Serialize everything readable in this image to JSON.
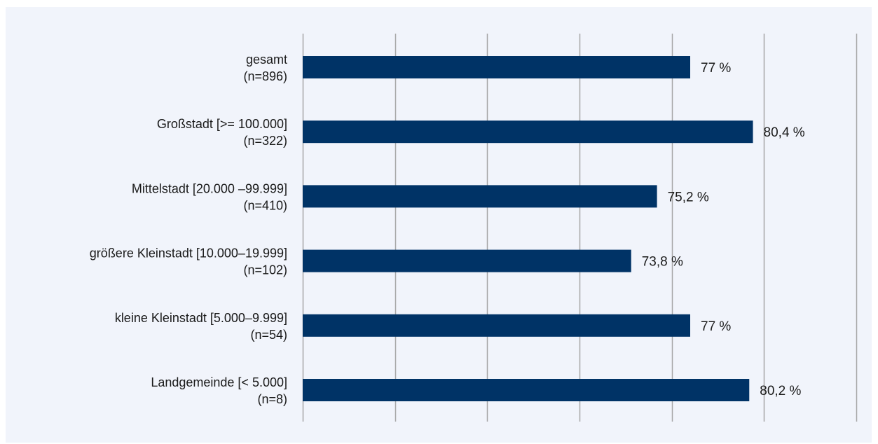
{
  "chart_data": {
    "type": "bar",
    "orientation": "horizontal",
    "title": "",
    "xlabel": "",
    "ylabel": "",
    "grid": true,
    "categories": [
      {
        "name": "gesamt",
        "n": "(n=896)"
      },
      {
        "name": "Großstadt [>= 100.000]",
        "n": "(n=322)"
      },
      {
        "name": "Mittelstadt [20.000 –99.999]",
        "n": "(n=410)"
      },
      {
        "name": "größere Kleinstadt [10.000–19.999]",
        "n": "(n=102)"
      },
      {
        "name": "kleine Kleinstadt [5.000–9.999]",
        "n": "(n=54)"
      },
      {
        "name": "Landgemeinde [< 5.000]",
        "n": "(n=8)"
      }
    ],
    "values": [
      77,
      80.4,
      75.2,
      73.8,
      77,
      80.2
    ],
    "value_labels": [
      "77 %",
      "80,4 %",
      "75,2 %",
      "73,8 %",
      "77 %",
      "80,2 %"
    ],
    "xlim": [
      56,
      86
    ],
    "gridlines": [
      56,
      61,
      66,
      71,
      76,
      81,
      86
    ],
    "colors": {
      "bar": "#003366",
      "grid": "#a6a6a6",
      "background": "#f1f4fb",
      "text": "#1a1a1a"
    }
  }
}
